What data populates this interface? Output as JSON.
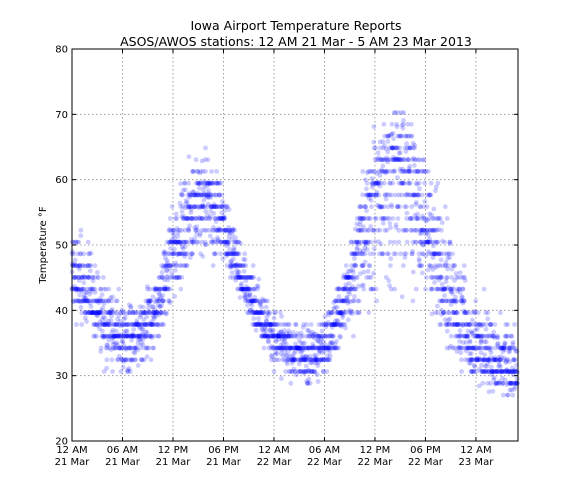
{
  "chart_data": {
    "type": "scatter",
    "title": "Iowa Airport Temperature Reports",
    "subtitle": "ASOS/AWOS stations: 12 AM 21 Mar - 5 AM 23 Mar 2013",
    "xlabel": "",
    "ylabel": "Temperature °F",
    "ylim": [
      20,
      80
    ],
    "yticks": [
      20,
      30,
      40,
      50,
      60,
      70,
      80
    ],
    "xlim_hours": [
      0,
      53
    ],
    "xticks": [
      {
        "hour": 0,
        "line1": "12 AM",
        "line2": "21 Mar"
      },
      {
        "hour": 6,
        "line1": "06 AM",
        "line2": "21 Mar"
      },
      {
        "hour": 12,
        "line1": "12 PM",
        "line2": "21 Mar"
      },
      {
        "hour": 18,
        "line1": "06 PM",
        "line2": "21 Mar"
      },
      {
        "hour": 24,
        "line1": "12 AM",
        "line2": "22 Mar"
      },
      {
        "hour": 30,
        "line1": "06 AM",
        "line2": "22 Mar"
      },
      {
        "hour": 36,
        "line1": "12 PM",
        "line2": "22 Mar"
      },
      {
        "hour": 42,
        "line1": "06 PM",
        "line2": "22 Mar"
      },
      {
        "hour": 48,
        "line1": "12 AM",
        "line2": "23 Mar"
      }
    ],
    "grid": true,
    "series": [
      {
        "color": "#0000ff",
        "opacity": 0.2,
        "envelope_hours": [
          0,
          2,
          4,
          6,
          8,
          10,
          12,
          14,
          16,
          18,
          20,
          22,
          24,
          26,
          28,
          30,
          32,
          34,
          36,
          38,
          40,
          42,
          44,
          46,
          48,
          50,
          53
        ],
        "envelope_low": [
          36,
          35,
          30,
          27,
          28,
          32,
          38,
          44,
          45,
          46,
          41,
          35,
          30,
          28,
          27,
          28,
          33,
          35,
          33,
          35,
          39,
          38,
          33,
          29,
          27,
          26,
          26
        ],
        "envelope_high": [
          59,
          52,
          45,
          44,
          42,
          48,
          58,
          65,
          66,
          62,
          52,
          46,
          41,
          39,
          41,
          41,
          47,
          59,
          70,
          75,
          75,
          68,
          61,
          52,
          46,
          43,
          40
        ],
        "envelope_center": [
          45,
          42,
          38,
          36,
          36,
          40,
          49,
          55,
          57,
          53,
          45,
          40,
          36,
          34,
          33,
          34,
          40,
          50,
          58,
          63,
          61,
          52,
          44,
          38,
          34,
          32,
          30
        ]
      }
    ]
  }
}
